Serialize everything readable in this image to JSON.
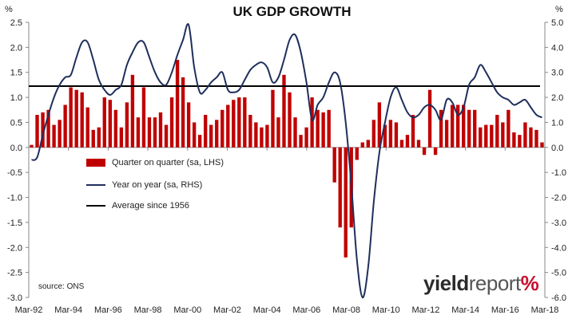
{
  "header": {
    "title": "UK GDP GROWTH",
    "left_unit": "%",
    "right_unit": "%"
  },
  "source": "source: ONS",
  "brand": {
    "part1": "yield",
    "part2": "report",
    "part3": "%"
  },
  "legend": {
    "bar_label": "Quarter on quarter (sa, LHS)",
    "line_label": "Year on year (sa, RHS)",
    "avg_label": "Average since 1956"
  },
  "colors": {
    "bar": "#c00000",
    "line": "#1f2f5c",
    "average": "#000000",
    "axis": "#888888"
  },
  "chart_data": {
    "type": "bar+line",
    "title": "UK GDP GROWTH",
    "x_tick_labels": [
      "Mar-92",
      "Mar-94",
      "Mar-96",
      "Mar-98",
      "Mar-00",
      "Mar-02",
      "Mar-04",
      "Mar-06",
      "Mar-08",
      "Mar-10",
      "Mar-12",
      "Mar-14",
      "Mar-16",
      "Mar-18"
    ],
    "left_axis": {
      "ylim": [
        -3.0,
        2.5
      ],
      "ticks": [
        "-3.0",
        "-2.5",
        "-2.0",
        "-1.5",
        "-1.0",
        "-0.5",
        "0.0",
        "0.5",
        "1.0",
        "1.5",
        "2.0",
        "2.5"
      ]
    },
    "right_axis": {
      "ylim": [
        -6.0,
        5.0
      ],
      "ticks": [
        "-6.0",
        "-5.0",
        "-4.0",
        "-3.0",
        "-2.0",
        "-1.0",
        "0.0",
        "1.0",
        "2.0",
        "3.0",
        "4.0",
        "5.0"
      ]
    },
    "grid": false,
    "average_line": {
      "name": "Average since 1956",
      "axis": "right",
      "value": 2.45
    },
    "series": [
      {
        "name": "Quarter on quarter (sa, LHS)",
        "type": "bar",
        "axis": "left",
        "values": [
          0.05,
          0.65,
          0.7,
          0.75,
          0.45,
          0.55,
          0.85,
          1.2,
          1.15,
          1.1,
          0.8,
          0.35,
          0.4,
          1.0,
          0.95,
          0.75,
          0.4,
          0.9,
          1.45,
          0.6,
          1.2,
          0.6,
          0.6,
          0.7,
          0.45,
          1.0,
          1.75,
          1.4,
          0.9,
          0.5,
          0.25,
          0.65,
          0.45,
          0.55,
          0.75,
          0.85,
          0.95,
          1.0,
          1.0,
          0.65,
          0.5,
          0.4,
          0.45,
          1.15,
          0.6,
          1.45,
          1.1,
          0.6,
          0.25,
          0.4,
          1.0,
          0.75,
          0.7,
          0.75,
          -0.7,
          -1.6,
          -2.2,
          -1.6,
          -0.25,
          0.1,
          0.15,
          0.55,
          0.9,
          0.45,
          0.55,
          0.5,
          0.15,
          0.25,
          0.65,
          0.15,
          -0.15,
          1.15,
          -0.15,
          0.75,
          0.55,
          0.85,
          0.85,
          0.85,
          0.75,
          0.75,
          0.4,
          0.45,
          0.45,
          0.65,
          0.5,
          0.75,
          0.3,
          0.25,
          0.5,
          0.4,
          0.35,
          0.1
        ],
        "highlight_last": 0.1
      },
      {
        "name": "Year on year (sa, RHS)",
        "type": "line",
        "axis": "right",
        "x": [
          0,
          1,
          2,
          3,
          4,
          5,
          6,
          7,
          8,
          9,
          10,
          11,
          12,
          13,
          14,
          15,
          16,
          17,
          18,
          19,
          20,
          21,
          22,
          23,
          24,
          25,
          26,
          27,
          28,
          29,
          30,
          31,
          32,
          33,
          34,
          35,
          36,
          37,
          38,
          39,
          40,
          41,
          42,
          43,
          44,
          45,
          46,
          47,
          48,
          49,
          50,
          51,
          52,
          53,
          54,
          55,
          56,
          57,
          58,
          59,
          60,
          61,
          62,
          63,
          64,
          65,
          66,
          67,
          68,
          69,
          70,
          71,
          72,
          73,
          74,
          75,
          76,
          77,
          78,
          79,
          80,
          81,
          82,
          83,
          84,
          85,
          86,
          87,
          88,
          89,
          90,
          91
        ],
        "values": [
          -0.5,
          -0.4,
          0.5,
          1.3,
          2.0,
          2.5,
          2.8,
          2.9,
          3.6,
          4.2,
          4.2,
          3.5,
          2.7,
          2.3,
          2.1,
          2.3,
          2.5,
          3.3,
          3.8,
          4.2,
          4.2,
          3.6,
          3.0,
          2.6,
          2.5,
          3.0,
          3.7,
          4.3,
          4.9,
          3.2,
          2.2,
          2.3,
          2.6,
          2.8,
          3.0,
          2.3,
          2.2,
          2.3,
          2.7,
          3.1,
          3.3,
          3.4,
          3.2,
          2.6,
          2.8,
          3.5,
          4.3,
          4.5,
          3.8,
          2.6,
          1.1,
          1.7,
          2.0,
          2.6,
          3.0,
          2.6,
          1.0,
          -1.5,
          -4.5,
          -6.0,
          -4.8,
          -2.2,
          -0.2,
          1.0,
          2.0,
          2.4,
          1.9,
          1.4,
          1.2,
          1.3,
          1.6,
          1.7,
          1.5,
          1.1,
          1.9,
          1.8,
          1.3,
          1.6,
          2.5,
          2.8,
          3.3,
          3.0,
          2.6,
          2.2,
          2.0,
          1.9,
          1.7,
          1.8,
          1.9,
          1.6,
          1.3,
          1.2
        ]
      }
    ]
  }
}
